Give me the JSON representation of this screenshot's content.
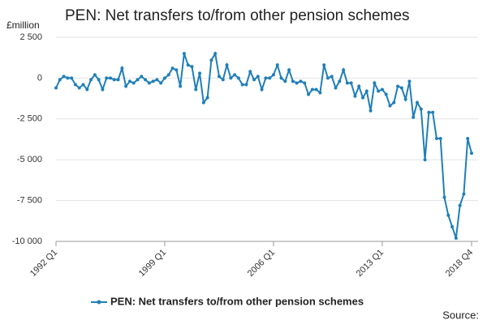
{
  "chart_data": {
    "type": "line",
    "title": "PEN: Net transfers to/from other pension schemes",
    "y_label": "£million",
    "source": "Source:",
    "categories": [
      "1992 Q1",
      null,
      null,
      null,
      null,
      null,
      null,
      null,
      null,
      null,
      null,
      null,
      null,
      null,
      null,
      null,
      null,
      null,
      null,
      null,
      null,
      null,
      null,
      null,
      null,
      null,
      null,
      null,
      "1999 Q1",
      null,
      null,
      null,
      null,
      null,
      null,
      null,
      null,
      null,
      null,
      null,
      null,
      null,
      null,
      null,
      null,
      null,
      null,
      null,
      null,
      null,
      null,
      null,
      null,
      null,
      null,
      null,
      "2006 Q1",
      null,
      null,
      null,
      null,
      null,
      null,
      null,
      null,
      null,
      null,
      null,
      null,
      null,
      null,
      null,
      null,
      null,
      null,
      null,
      null,
      null,
      null,
      null,
      null,
      null,
      null,
      null,
      "2013 Q1",
      null,
      null,
      null,
      null,
      null,
      null,
      null,
      null,
      null,
      null,
      null,
      null,
      null,
      null,
      null,
      null,
      null,
      null,
      null,
      null,
      null,
      null,
      "2018 Q4"
    ],
    "series": [
      {
        "name": "PEN: Net transfers to/from other pension schemes",
        "color": "#1f7fb9",
        "values": [
          -600,
          -100,
          100,
          0,
          0,
          -400,
          -600,
          -400,
          -700,
          -100,
          200,
          -100,
          -700,
          0,
          0,
          -100,
          -100,
          600,
          -500,
          -200,
          -300,
          -100,
          100,
          -100,
          -300,
          -200,
          -100,
          -300,
          0,
          200,
          600,
          500,
          -500,
          1500,
          800,
          700,
          -700,
          300,
          -1500,
          -1200,
          1100,
          1500,
          100,
          -100,
          800,
          0,
          200,
          0,
          -400,
          -400,
          400,
          -100,
          100,
          -700,
          0,
          0,
          200,
          800,
          0,
          -200,
          500,
          -200,
          -300,
          -200,
          -300,
          -1000,
          -700,
          -700,
          -900,
          800,
          0,
          100,
          -600,
          -200,
          500,
          -300,
          -300,
          -1100,
          -500,
          -1200,
          -800,
          -2000,
          -300,
          -800,
          -700,
          -1000,
          -1700,
          -1500,
          -500,
          -600,
          -1300,
          -200,
          -2400,
          -1500,
          -1900,
          -5000,
          -2100,
          -2100,
          -3700,
          -3700,
          -7300,
          -8400,
          -9100,
          -9800,
          -7800,
          -7100,
          -3700,
          -4600
        ]
      }
    ],
    "ylim": [
      -10000,
      2500
    ],
    "yticks": [
      {
        "value": 2500,
        "label": "2 500"
      },
      0,
      {
        "value": -2500,
        "label": "-2 500"
      },
      {
        "value": -5000,
        "label": "-5 000"
      },
      {
        "value": -7500,
        "label": "-7 500"
      },
      {
        "value": -10000,
        "label": "-10 000"
      }
    ],
    "grid": true
  }
}
